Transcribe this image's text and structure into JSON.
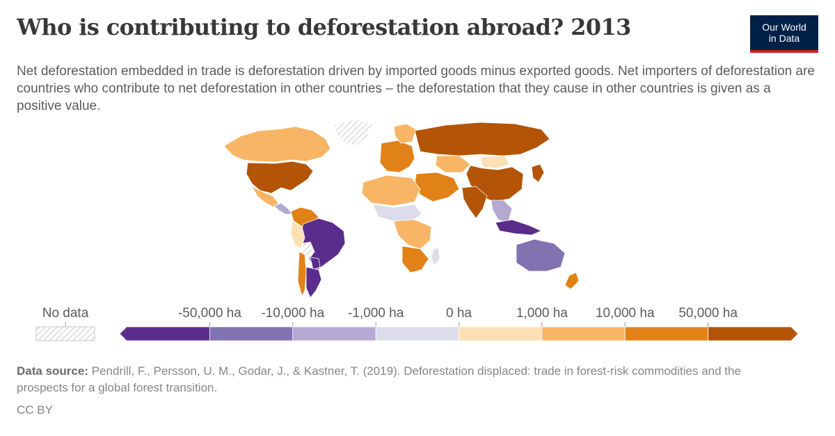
{
  "title": "Who is contributing to deforestation abroad? 2013",
  "subtitle": "Net deforestation embedded in trade is deforestation driven by imported goods minus exported goods. Net importers of deforestation are countries who contribute to net deforestation in other countries – the deforestation that they cause in other countries is given as a positive value.",
  "logo": {
    "line1": "Our World",
    "line2": "in Data",
    "bg": "#002147",
    "accent": "#ce261e"
  },
  "legend": {
    "no_data_label": "No data",
    "thresholds": [
      "-50,000 ha",
      "-10,000 ha",
      "-1,000 ha",
      "0 ha",
      "1,000 ha",
      "10,000 ha",
      "50,000 ha"
    ],
    "colors": [
      "#5a2d8c",
      "#8172b2",
      "#b3a9d3",
      "#dcdcea",
      "#fde0b4",
      "#f8b565",
      "#e08218",
      "#b45407"
    ]
  },
  "regions": [
    {
      "name": "Canada",
      "value": "1,000 to 10,000 ha",
      "bin": 5
    },
    {
      "name": "Greenland",
      "value": "No data",
      "bin": null
    },
    {
      "name": "United States",
      "value": "50,000 ha or more",
      "bin": 7
    },
    {
      "name": "Mexico",
      "value": "1,000 to 10,000 ha",
      "bin": 5
    },
    {
      "name": "Central America",
      "value": "-10,000 to -1,000 ha",
      "bin": 2
    },
    {
      "name": "Colombia & Venezuela",
      "value": "10,000 to 50,000 ha",
      "bin": 6
    },
    {
      "name": "Brazil",
      "value": "below -50,000 ha",
      "bin": 0
    },
    {
      "name": "Peru",
      "value": "0 to 1,000 ha",
      "bin": 4
    },
    {
      "name": "Bolivia",
      "value": "No data",
      "bin": null
    },
    {
      "name": "Paraguay",
      "value": "below -50,000 ha",
      "bin": 0
    },
    {
      "name": "Argentina",
      "value": "below -50,000 ha",
      "bin": 0
    },
    {
      "name": "Chile",
      "value": "10,000 to 50,000 ha",
      "bin": 6
    },
    {
      "name": "Western Europe",
      "value": "10,000 to 50,000 ha",
      "bin": 6
    },
    {
      "name": "Scandinavia",
      "value": "1,000 to 10,000 ha",
      "bin": 5
    },
    {
      "name": "Russia",
      "value": "50,000 ha or more",
      "bin": 7
    },
    {
      "name": "Kazakhstan",
      "value": "1,000 to 10,000 ha",
      "bin": 5
    },
    {
      "name": "Mongolia",
      "value": "0 to 1,000 ha",
      "bin": 4
    },
    {
      "name": "China",
      "value": "50,000 ha or more",
      "bin": 7
    },
    {
      "name": "India",
      "value": "50,000 ha or more",
      "bin": 7
    },
    {
      "name": "Middle East",
      "value": "10,000 to 50,000 ha",
      "bin": 6
    },
    {
      "name": "Southeast Asia",
      "value": "-10,000 to -1,000 ha",
      "bin": 2
    },
    {
      "name": "Indonesia",
      "value": "below -50,000 ha",
      "bin": 0
    },
    {
      "name": "Japan",
      "value": "50,000 ha or more",
      "bin": 7
    },
    {
      "name": "North Africa",
      "value": "1,000 to 10,000 ha",
      "bin": 5
    },
    {
      "name": "Sahel",
      "value": "-1,000 to 0 ha",
      "bin": 3
    },
    {
      "name": "Central Africa",
      "value": "1,000 to 10,000 ha",
      "bin": 5
    },
    {
      "name": "Southern Africa",
      "value": "10,000 to 50,000 ha",
      "bin": 6
    },
    {
      "name": "Madagascar",
      "value": "-1,000 to 0 ha",
      "bin": 3
    },
    {
      "name": "Australia",
      "value": "-50,000 to -10,000 ha",
      "bin": 1
    },
    {
      "name": "New Zealand",
      "value": "10,000 to 50,000 ha",
      "bin": 6
    }
  ],
  "source": {
    "label": "Data source:",
    "text": "Pendrill, F., Persson, U. M., Godar, J., & Kastner, T. (2019). Deforestation displaced: trade in forest-risk commodities and the prospects for a global forest transition."
  },
  "license": "CC BY"
}
